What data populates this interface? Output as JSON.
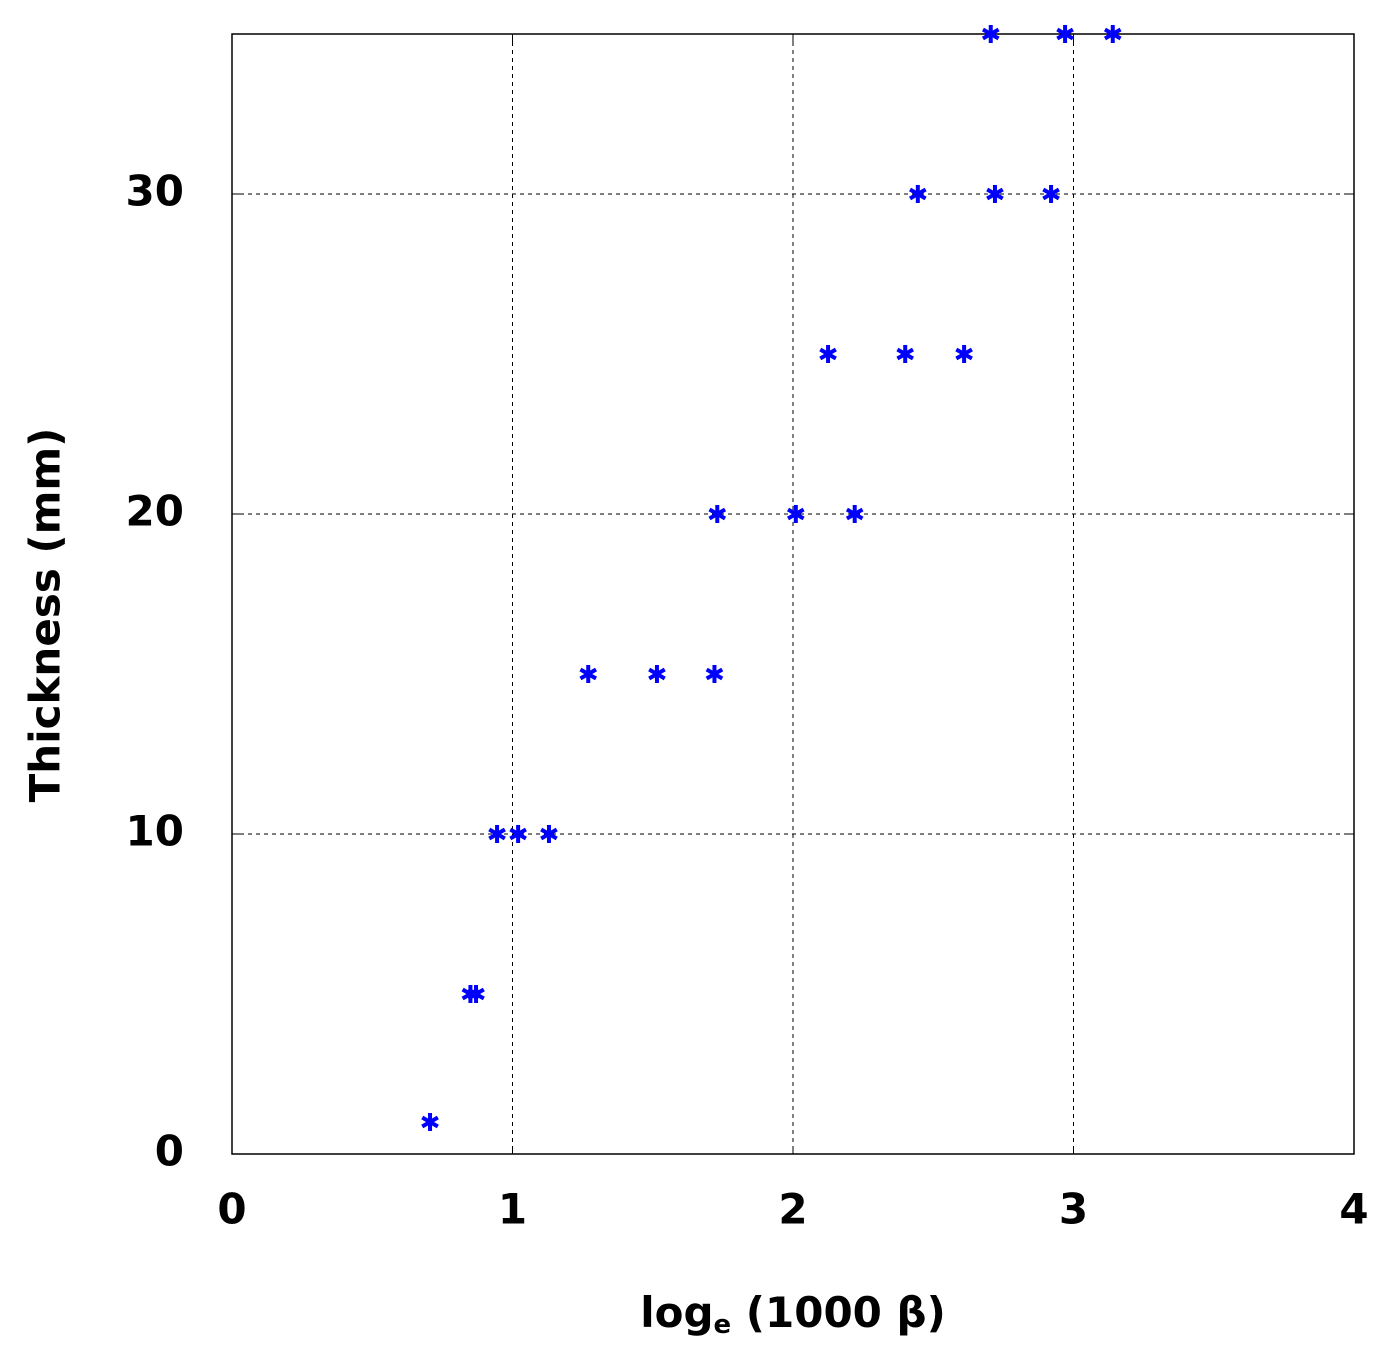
{
  "chart_data": {
    "type": "scatter",
    "x_label_parts": [
      "log",
      "e",
      "(1000 β)"
    ],
    "y_label": "Thickness (mm)",
    "xlim": [
      0,
      4
    ],
    "ylim": [
      0,
      35
    ],
    "xticks": [
      0,
      1,
      2,
      3,
      4
    ],
    "yticks": [
      0,
      10,
      20,
      30
    ],
    "grid": true,
    "marker": "asterisk",
    "series": [
      {
        "color": "#0000ff",
        "x": [
          0.706,
          0.85,
          0.87,
          0.945,
          1.02,
          1.13,
          1.27,
          1.515,
          1.72,
          1.73,
          2.01,
          2.22,
          2.125,
          2.4,
          2.61,
          2.445,
          2.72,
          2.92,
          2.705,
          2.97,
          3.14
        ],
        "values": [
          1,
          5,
          5,
          10,
          10,
          10,
          15,
          15,
          15,
          20,
          20,
          20,
          25,
          25,
          25,
          30,
          30,
          30,
          35,
          35,
          35
        ]
      }
    ]
  }
}
